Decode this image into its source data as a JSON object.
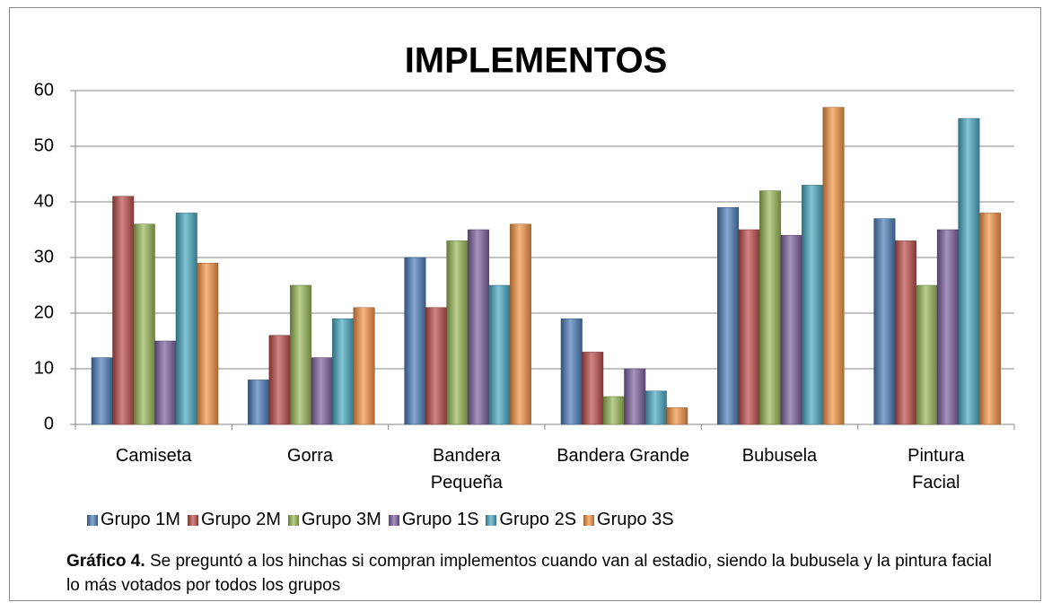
{
  "chart_data": {
    "type": "bar",
    "title": "IMPLEMENTOS",
    "categories": [
      "Camiseta",
      "Gorra",
      "Bandera Pequeña",
      "Bandera Grande",
      "Bubusela",
      "Pintura Facial"
    ],
    "series": [
      {
        "name": "Grupo 1M",
        "color": "#4f81bd",
        "values": [
          12,
          8,
          30,
          19,
          39,
          37
        ]
      },
      {
        "name": "Grupo 2M",
        "color": "#c0504d",
        "values": [
          41,
          16,
          21,
          13,
          35,
          33
        ]
      },
      {
        "name": "Grupo 3M",
        "color": "#9bbb59",
        "values": [
          36,
          25,
          33,
          5,
          42,
          25
        ]
      },
      {
        "name": "Grupo 1S",
        "color": "#8064a2",
        "values": [
          15,
          12,
          35,
          10,
          34,
          35
        ]
      },
      {
        "name": "Grupo 2S",
        "color": "#4bacc6",
        "values": [
          38,
          19,
          25,
          6,
          43,
          55
        ]
      },
      {
        "name": "Grupo 3S",
        "color": "#f79646",
        "values": [
          29,
          21,
          36,
          3,
          57,
          38
        ]
      }
    ],
    "ylim": [
      0,
      60
    ],
    "yticks": [
      0,
      10,
      20,
      30,
      40,
      50,
      60
    ],
    "grid": true,
    "legend": "bottom"
  },
  "caption": {
    "label": "Gráfico 4.",
    "text": "Se preguntó  a los hinchas si compran implementos cuando van al estadio, siendo la bubusela y la pintura facial lo más votados por todos los grupos"
  }
}
